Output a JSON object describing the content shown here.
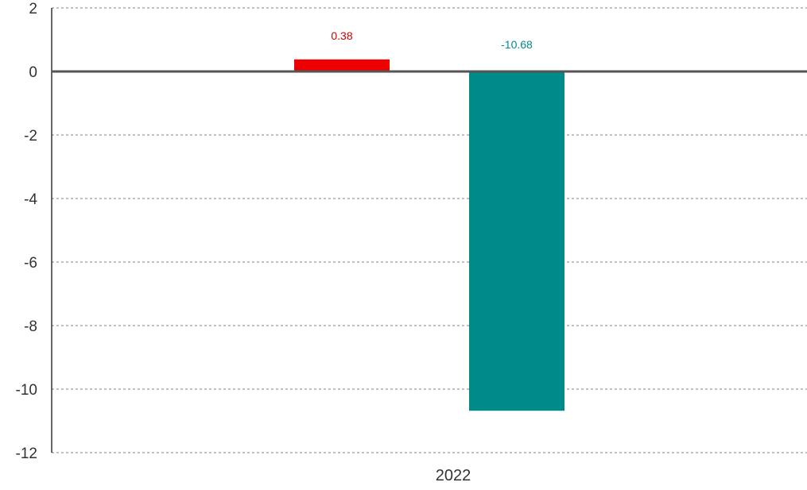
{
  "chart_data": {
    "type": "bar",
    "categories": [
      "2022"
    ],
    "series": [
      {
        "values": [
          0.38
        ],
        "color": "#ee0000",
        "label_color": "#cc0000"
      },
      {
        "values": [
          -10.68
        ],
        "color": "#008b8b",
        "label_color": "#008b8b"
      }
    ],
    "data_labels": [
      "0.38",
      "-10.68"
    ],
    "title": "",
    "xlabel": "",
    "ylabel": "",
    "ylim": [
      -12,
      2
    ],
    "yticks": [
      2,
      0,
      -2,
      -4,
      -6,
      -8,
      -10,
      -12
    ],
    "ytick_labels": [
      "2",
      "0",
      "-2",
      "-4",
      "-6",
      "-8",
      "-10",
      "-12"
    ],
    "grid": true,
    "grid_style": "dashed",
    "legend": "none"
  }
}
